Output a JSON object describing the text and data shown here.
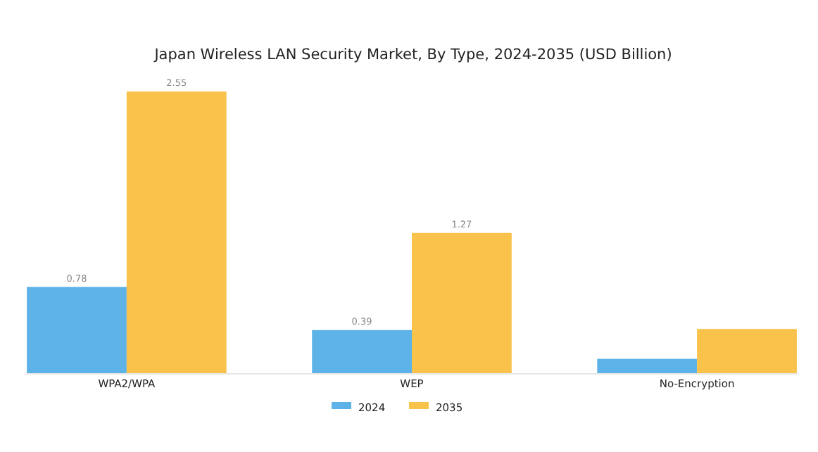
{
  "chart_data": {
    "type": "bar",
    "title": "Japan Wireless LAN Security Market, By Type, 2024-2035 (USD Billion)",
    "categories": [
      "WPA2/WPA",
      "WEP",
      "No-Encryption"
    ],
    "series": [
      {
        "name": "2024",
        "color": "#5db3e8",
        "values": [
          0.78,
          0.39,
          0.13
        ],
        "value_labels": [
          "0.78",
          "0.39",
          null
        ]
      },
      {
        "name": "2035",
        "color": "#f9c34b",
        "values": [
          2.55,
          1.27,
          0.4
        ],
        "value_labels": [
          "2.55",
          "1.27",
          null
        ]
      }
    ],
    "legend": "bottom"
  }
}
